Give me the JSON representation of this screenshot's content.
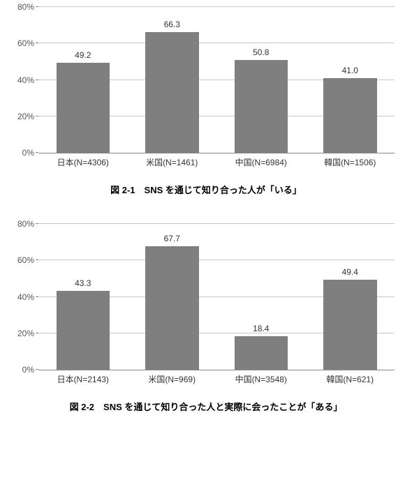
{
  "charts": [
    {
      "type": "bar",
      "caption": "図 2-1　SNS を通じて知り合った人が「いる」",
      "categories": [
        "日本(N=4306)",
        "米国(N=1461)",
        "中国(N=6984)",
        "韓国(N=1506)"
      ],
      "values": [
        49.2,
        66.3,
        50.8,
        41.0
      ],
      "value_labels": [
        "49.2",
        "66.3",
        "50.8",
        "41.0"
      ],
      "ylim": [
        0,
        80
      ],
      "ytick_step": 20,
      "ytick_labels": [
        "0%",
        "20%",
        "40%",
        "60%",
        "80%"
      ],
      "bar_color": "#7f7f7f",
      "grid_color": "#c8c8c8",
      "axis_color": "#888888",
      "background_color": "#ffffff",
      "label_fontsize": 12,
      "caption_fontsize": 13,
      "bar_width_pct": 60
    },
    {
      "type": "bar",
      "caption": "図 2-2　SNS を通じて知り合った人と実際に会ったことが「ある」",
      "categories": [
        "日本(N=2143)",
        "米国(N=969)",
        "中国(N=3548)",
        "韓国(N=621)"
      ],
      "values": [
        43.3,
        67.7,
        18.4,
        49.4
      ],
      "value_labels": [
        "43.3",
        "67.7",
        "18.4",
        "49.4"
      ],
      "ylim": [
        0,
        80
      ],
      "ytick_step": 20,
      "ytick_labels": [
        "0%",
        "20%",
        "40%",
        "60%",
        "80%"
      ],
      "bar_color": "#7f7f7f",
      "grid_color": "#c8c8c8",
      "axis_color": "#888888",
      "background_color": "#ffffff",
      "label_fontsize": 12,
      "caption_fontsize": 13,
      "bar_width_pct": 60
    }
  ]
}
